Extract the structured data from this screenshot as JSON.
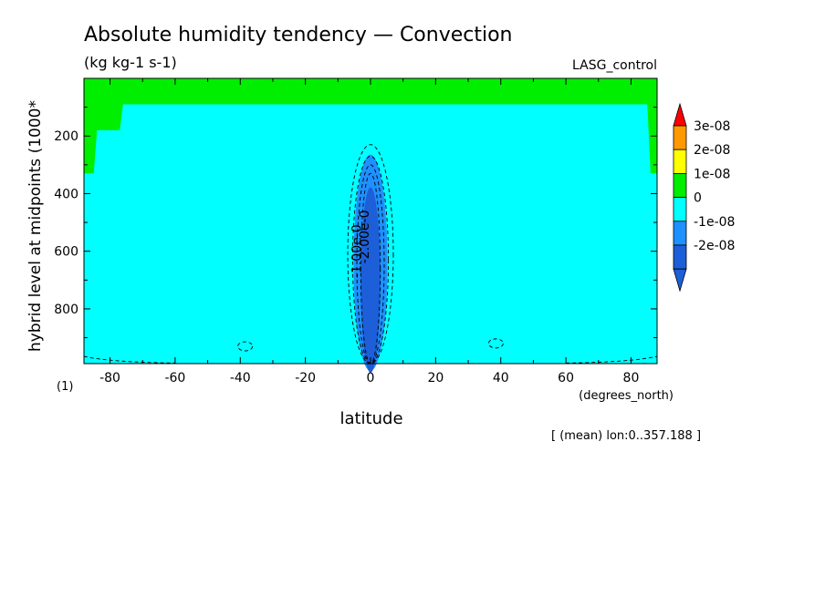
{
  "chart_data": {
    "type": "heatmap",
    "title": "Absolute humidity tendency — Convection",
    "units": "(kg kg-1 s-1)",
    "experiment": "LASG_control",
    "xlabel": "latitude",
    "x_units": "(degrees_north)",
    "ylabel": "hybrid level at midpoints (1000*",
    "y_units": "(1)",
    "note": "[ (mean) lon:0..357.188 ]",
    "xlim": [
      -88,
      88
    ],
    "ylim": [
      990,
      0
    ],
    "y_axis_inverted": true,
    "x_ticks": [
      -80,
      -60,
      -40,
      -20,
      0,
      20,
      40,
      60,
      80
    ],
    "y_ticks": [
      200,
      400,
      600,
      800
    ],
    "colorbar": {
      "levels": [
        "3e-08",
        "2e-08",
        "1e-08",
        "0",
        "-1e-08",
        "-2e-08"
      ],
      "colors": [
        "#ff0000",
        "#ff9900",
        "#ffff00",
        "#00ee00",
        "#00ffff",
        "#1e90ff",
        "#1c5fd8"
      ],
      "extend": "both"
    },
    "regions": [
      {
        "range": "0 to 1e-08",
        "color": "#00ee00",
        "description": "upper levels above ~90 and polar upper regions"
      },
      {
        "range": "-1e-08 to 0",
        "color": "#00ffff",
        "description": "background below ~90"
      },
      {
        "range": "-2e-08 to -1e-08",
        "color": "#1e90ff",
        "description": "equatorial column ~280-990"
      },
      {
        "range": "< -2e-08",
        "color": "#1c5fd8",
        "description": "equatorial core"
      }
    ],
    "contour_labels": [
      "-1.00e-0",
      "-2.00e-0"
    ],
    "background_color": "#00ffff"
  }
}
